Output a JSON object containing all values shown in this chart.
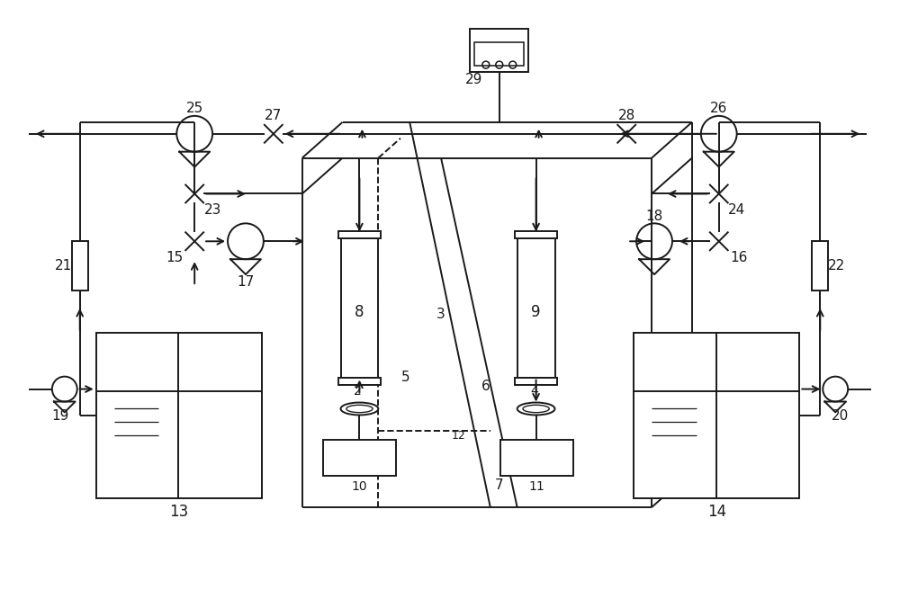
{
  "bg_color": "#ffffff",
  "line_color": "#1a1a1a",
  "lw": 1.4,
  "fig_w": 10.0,
  "fig_h": 6.66
}
